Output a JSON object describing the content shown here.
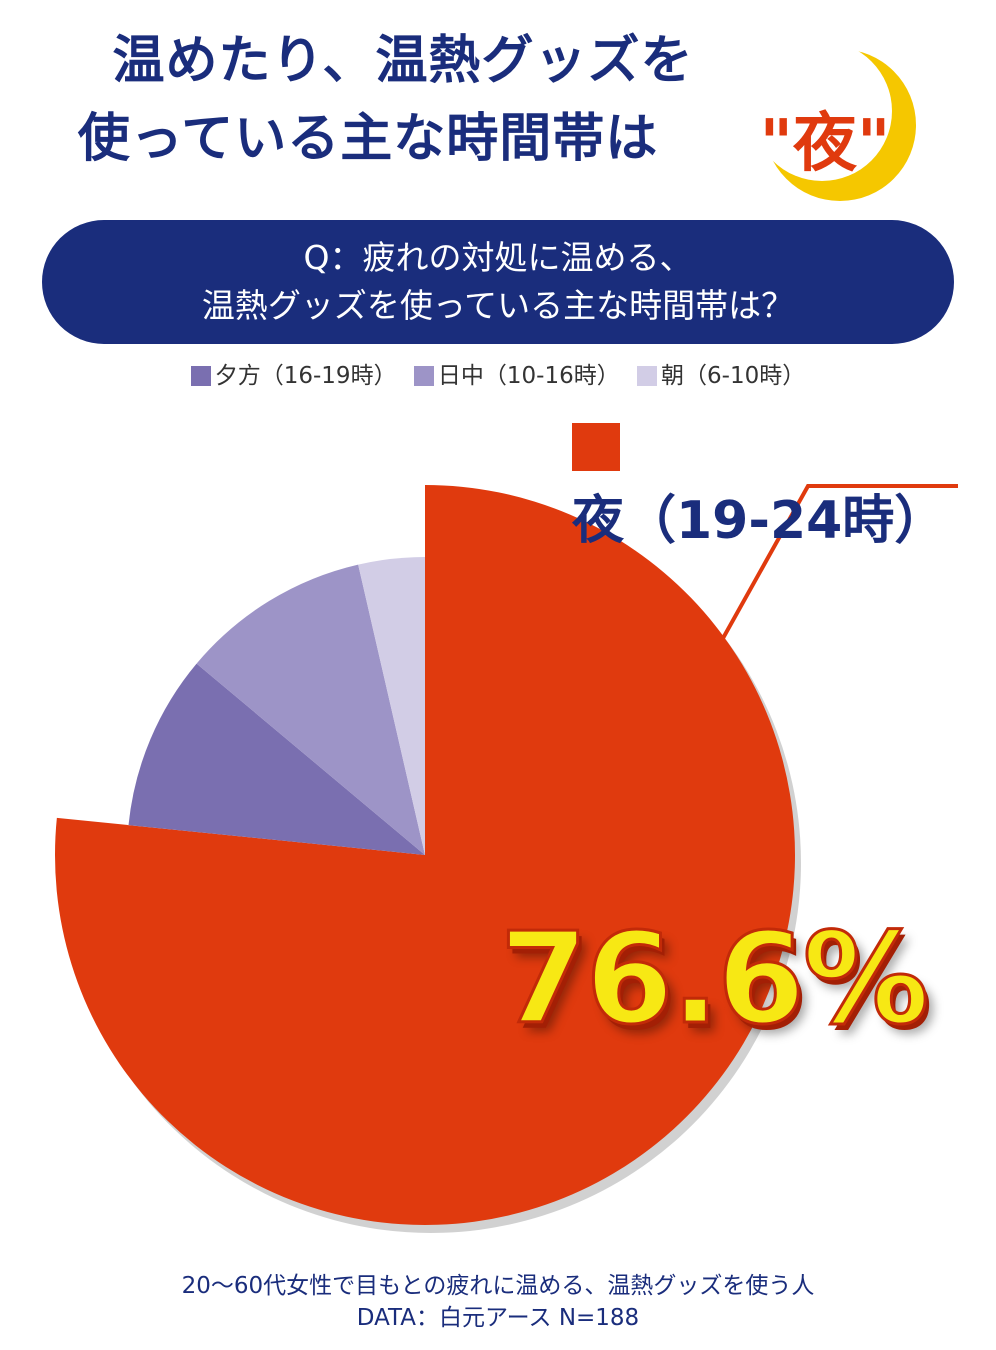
{
  "header": {
    "title_line1": "温めたり、温熱グッズを",
    "title_line2": "使っている主な時間帯は",
    "title_highlight": "\"夜\""
  },
  "question": {
    "line1": "Q：疲れの対処に温める、",
    "line2": "温熱グッズを使っている主な時間帯は？"
  },
  "legend": [
    {
      "label": "夕方（16-19時）",
      "color": "#7a6fb0"
    },
    {
      "label": "日中（10-16時）",
      "color": "#9d94c7"
    },
    {
      "label": "朝（6-10時）",
      "color": "#d2cde6"
    }
  ],
  "callout": {
    "label": "夜（19-24時）",
    "color": "#e03a0e",
    "percent": "76.6%"
  },
  "chart_data": {
    "type": "pie",
    "title": "温めたり、温熱グッズを使っている主な時間帯は\"夜\"",
    "slices": [
      {
        "label": "夜（19-24時）",
        "value": 76.6,
        "color": "#e03a0e"
      },
      {
        "label": "夕方（16-19時）",
        "value": 9.5,
        "color": "#7a6fb0"
      },
      {
        "label": "日中（10-16時）",
        "value": 10.3,
        "color": "#9d94c7"
      },
      {
        "label": "朝（6-10時）",
        "value": 3.6,
        "color": "#d2cde6"
      }
    ]
  },
  "footer": {
    "line1": "20～60代女性で目もとの疲れに温める、温熱グッズを使う人",
    "line2": "DATA：白元アース N=188"
  }
}
